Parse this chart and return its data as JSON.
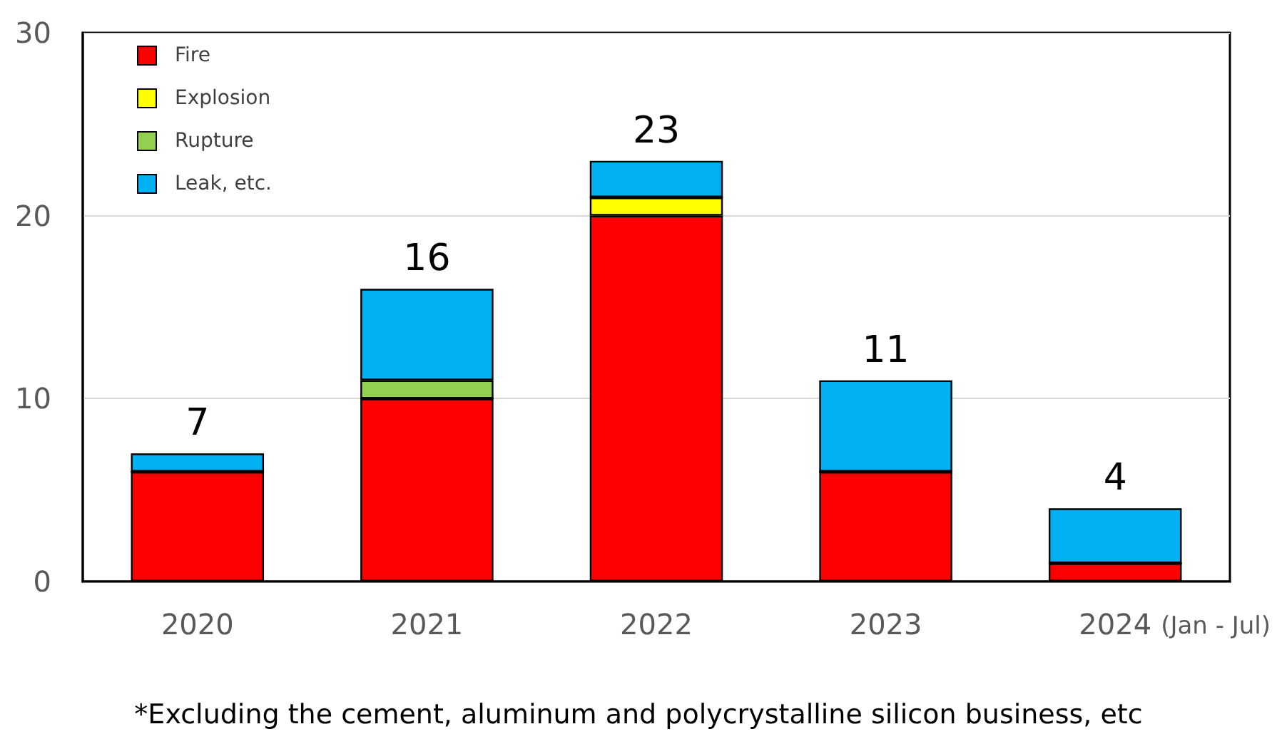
{
  "chart_data": {
    "type": "bar",
    "stacked": true,
    "categories": [
      "2020",
      "2021",
      "2022",
      "2023",
      "2024"
    ],
    "series": [
      {
        "name": "Fire",
        "color": "#ff0000",
        "values": [
          6,
          10,
          20,
          6,
          1
        ]
      },
      {
        "name": "Explosion",
        "color": "#ffff00",
        "values": [
          0,
          0,
          1,
          0,
          0
        ]
      },
      {
        "name": "Rupture",
        "color": "#92d050",
        "values": [
          0,
          1,
          0,
          0,
          0
        ]
      },
      {
        "name": "Leak, etc.",
        "color": "#00b0f0",
        "values": [
          1,
          5,
          2,
          5,
          3
        ]
      }
    ],
    "totals": [
      "7",
      "16",
      "23",
      "11",
      "4"
    ],
    "ylim": [
      0,
      30
    ],
    "yticks": [
      0,
      10,
      20,
      30
    ],
    "grid": "y",
    "legend": "top left",
    "annotations": [
      "(Jan - Jul)",
      "*Excluding the cement, aluminum and polycrystalline silicon business, etc"
    ]
  }
}
